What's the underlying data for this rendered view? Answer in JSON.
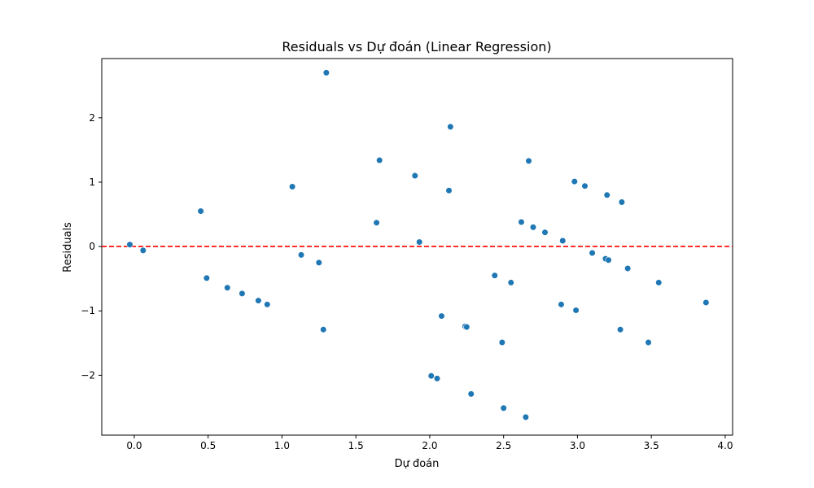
{
  "chart_data": {
    "type": "scatter",
    "title": "Residuals vs Dự đoán (Linear Regression)",
    "xlabel": "Dự đoán",
    "ylabel": "Residuals",
    "xlim": [
      -0.22,
      4.05
    ],
    "ylim": [
      -2.93,
      2.92
    ],
    "xticks": [
      0.0,
      0.5,
      1.0,
      1.5,
      2.0,
      2.5,
      3.0,
      3.5,
      4.0
    ],
    "xtick_labels": [
      "0.0",
      "0.5",
      "1.0",
      "1.5",
      "2.0",
      "2.5",
      "3.0",
      "3.5",
      "4.0"
    ],
    "yticks": [
      -2,
      -1,
      0,
      1,
      2
    ],
    "ytick_labels": [
      "−2",
      "−1",
      "0",
      "1",
      "2"
    ],
    "grid": false,
    "point_color": "#1f77b4",
    "reference_line": {
      "y": 0,
      "color": "#ff0000",
      "style": "dashed"
    },
    "points": [
      {
        "x": -0.03,
        "y": 0.03
      },
      {
        "x": 0.06,
        "y": -0.06
      },
      {
        "x": 0.45,
        "y": 0.55
      },
      {
        "x": 0.49,
        "y": -0.49
      },
      {
        "x": 0.63,
        "y": -0.64
      },
      {
        "x": 0.73,
        "y": -0.73
      },
      {
        "x": 0.84,
        "y": -0.84
      },
      {
        "x": 0.9,
        "y": -0.9
      },
      {
        "x": 1.07,
        "y": 0.93
      },
      {
        "x": 1.13,
        "y": -0.13
      },
      {
        "x": 1.25,
        "y": -0.25
      },
      {
        "x": 1.28,
        "y": -1.29
      },
      {
        "x": 1.3,
        "y": 2.7
      },
      {
        "x": 1.64,
        "y": 0.37
      },
      {
        "x": 1.66,
        "y": 1.34
      },
      {
        "x": 1.9,
        "y": 1.1
      },
      {
        "x": 1.93,
        "y": 0.07
      },
      {
        "x": 2.01,
        "y": -2.01
      },
      {
        "x": 2.05,
        "y": -2.05
      },
      {
        "x": 2.08,
        "y": -1.08
      },
      {
        "x": 2.13,
        "y": 0.87
      },
      {
        "x": 2.14,
        "y": 1.86
      },
      {
        "x": 2.24,
        "y": -1.24
      },
      {
        "x": 2.25,
        "y": -1.25
      },
      {
        "x": 2.28,
        "y": -2.29
      },
      {
        "x": 2.44,
        "y": -0.45
      },
      {
        "x": 2.49,
        "y": -1.49
      },
      {
        "x": 2.5,
        "y": -2.51
      },
      {
        "x": 2.55,
        "y": -0.56
      },
      {
        "x": 2.62,
        "y": 0.38
      },
      {
        "x": 2.65,
        "y": -2.65
      },
      {
        "x": 2.67,
        "y": 1.33
      },
      {
        "x": 2.7,
        "y": 0.3
      },
      {
        "x": 2.78,
        "y": 0.22
      },
      {
        "x": 2.89,
        "y": -0.9
      },
      {
        "x": 2.9,
        "y": 0.09
      },
      {
        "x": 2.98,
        "y": 1.01
      },
      {
        "x": 2.99,
        "y": -0.99
      },
      {
        "x": 3.05,
        "y": 0.94
      },
      {
        "x": 3.1,
        "y": -0.1
      },
      {
        "x": 3.19,
        "y": -0.19
      },
      {
        "x": 3.2,
        "y": 0.8
      },
      {
        "x": 3.21,
        "y": -0.21
      },
      {
        "x": 3.29,
        "y": -1.29
      },
      {
        "x": 3.3,
        "y": 0.69
      },
      {
        "x": 3.34,
        "y": -0.34
      },
      {
        "x": 3.48,
        "y": -1.49
      },
      {
        "x": 3.55,
        "y": -0.56
      },
      {
        "x": 3.87,
        "y": -0.87
      }
    ]
  }
}
